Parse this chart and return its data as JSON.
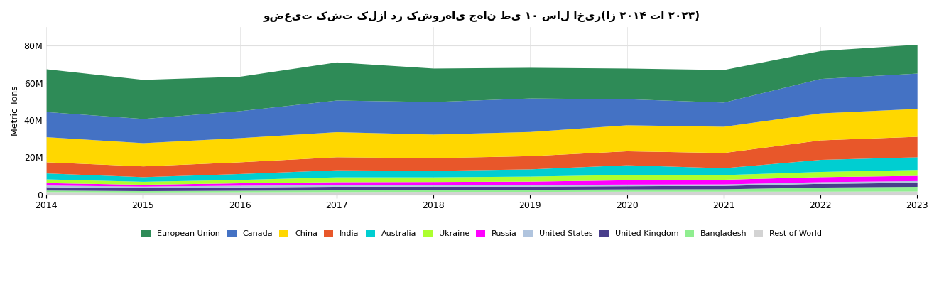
{
  "years": [
    2014,
    2015,
    2016,
    2017,
    2018,
    2019,
    2020,
    2021,
    2022,
    2023
  ],
  "title": "وضعیت کشت کلزا در کشورهای جهان طی ۱۰ سال اخیر(از ۲۰۱۴ تا ۲۰۲۳)",
  "ylabel": "Metric Tons",
  "series": {
    "Rest of World": [
      1500000,
      1300000,
      1400000,
      1500000,
      1600000,
      1600000,
      1700000,
      1700000,
      1700000,
      1800000
    ],
    "Bangladesh": [
      800000,
      700000,
      800000,
      900000,
      1000000,
      1100000,
      1200000,
      1300000,
      2200000,
      2500000
    ],
    "United Kingdom": [
      1800000,
      1600000,
      1800000,
      1900000,
      1800000,
      1700000,
      1700000,
      1800000,
      2000000,
      2100000
    ],
    "United States": [
      900000,
      800000,
      900000,
      900000,
      800000,
      900000,
      900000,
      800000,
      900000,
      1000000
    ],
    "Russia": [
      1300000,
      1000000,
      1300000,
      1600000,
      1700000,
      1800000,
      2300000,
      2500000,
      2700000,
      2800000
    ],
    "Ukraine": [
      2000000,
      1600000,
      1800000,
      2600000,
      2500000,
      2700000,
      2900000,
      2500000,
      2800000,
      3200000
    ],
    "Australia": [
      3200000,
      2500000,
      3200000,
      3800000,
      3500000,
      3900000,
      5200000,
      3700000,
      6500000,
      6800000
    ],
    "India": [
      6000000,
      5800000,
      6300000,
      7000000,
      6800000,
      7100000,
      7500000,
      8200000,
      10500000,
      11000000
    ],
    "China": [
      13500000,
      12500000,
      13000000,
      13500000,
      12700000,
      13000000,
      14000000,
      14100000,
      14500000,
      15000000
    ],
    "Canada": [
      13500000,
      13000000,
      14500000,
      17000000,
      17500000,
      18000000,
      14000000,
      13000000,
      18500000,
      19000000
    ],
    "European Union": [
      23000000,
      21000000,
      18500000,
      20500000,
      18000000,
      16500000,
      16500000,
      17500000,
      15000000,
      15500000
    ]
  },
  "colors": {
    "Rest of World": "#d3d3d3",
    "Bangladesh": "#90ee90",
    "United Kingdom": "#483d8b",
    "United States": "#b0c4de",
    "Russia": "#ff00ff",
    "Ukraine": "#adff2f",
    "Australia": "#00ced1",
    "India": "#e8572a",
    "China": "#ffd700",
    "Canada": "#4472c4",
    "European Union": "#2e8b57"
  },
  "legend_order": [
    "European Union",
    "Canada",
    "China",
    "India",
    "Australia",
    "Ukraine",
    "Russia",
    "United States",
    "United Kingdom",
    "Bangladesh",
    "Rest of World"
  ],
  "ylim": [
    0,
    90000000
  ],
  "yticks": [
    0,
    20000000,
    40000000,
    60000000,
    80000000
  ],
  "ytick_labels": [
    "0",
    "20M",
    "40M",
    "60M",
    "80M"
  ],
  "background_color": "#ffffff",
  "grid_color": "#e0e0e0"
}
